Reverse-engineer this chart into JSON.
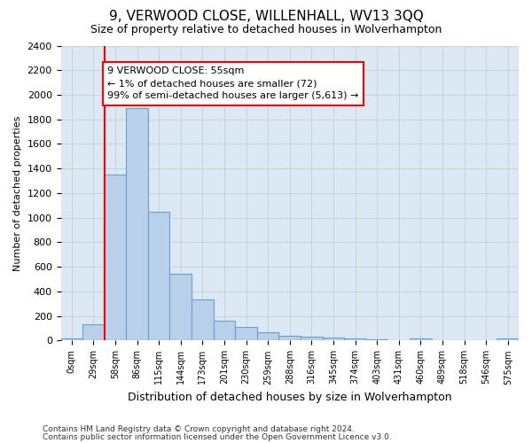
{
  "title": "9, VERWOOD CLOSE, WILLENHALL, WV13 3QQ",
  "subtitle": "Size of property relative to detached houses in Wolverhampton",
  "xlabel": "Distribution of detached houses by size in Wolverhampton",
  "ylabel": "Number of detached properties",
  "bar_color": "#b8d0ea",
  "bar_edge_color": "#6aa0cc",
  "grid_color": "#cccccc",
  "background_color": "#dde8f5",
  "vline_color": "red",
  "vline_x": 2,
  "annotation_text": "9 VERWOOD CLOSE: 55sqm\n← 1% of detached houses are smaller (72)\n99% of semi-detached houses are larger (5,613) →",
  "annotation_box_color": "white",
  "annotation_box_edge": "red",
  "categories": [
    "0sqm",
    "29sqm",
    "58sqm",
    "86sqm",
    "115sqm",
    "144sqm",
    "173sqm",
    "201sqm",
    "230sqm",
    "259sqm",
    "288sqm",
    "316sqm",
    "345sqm",
    "374sqm",
    "403sqm",
    "431sqm",
    "460sqm",
    "489sqm",
    "518sqm",
    "546sqm",
    "575sqm"
  ],
  "values": [
    20,
    130,
    1350,
    1890,
    1045,
    545,
    335,
    165,
    110,
    65,
    38,
    30,
    25,
    20,
    12,
    0,
    18,
    0,
    0,
    0,
    18
  ],
  "ylim": [
    0,
    2400
  ],
  "yticks": [
    0,
    200,
    400,
    600,
    800,
    1000,
    1200,
    1400,
    1600,
    1800,
    2000,
    2200,
    2400
  ],
  "footer_line1": "Contains HM Land Registry data © Crown copyright and database right 2024.",
  "footer_line2": "Contains public sector information licensed under the Open Government Licence v3.0."
}
